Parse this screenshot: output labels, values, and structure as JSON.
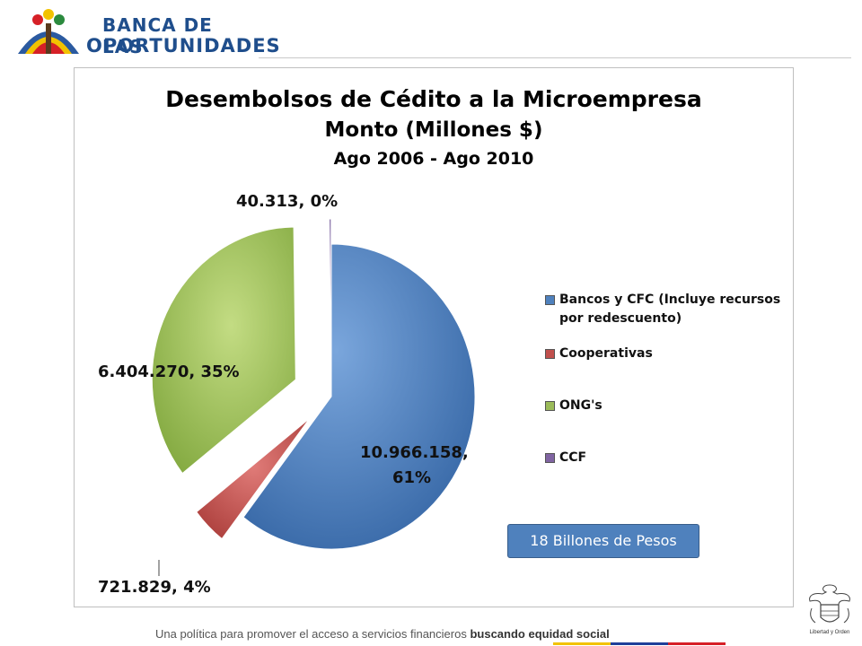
{
  "header": {
    "logo_line1": "BANCA DE LAS",
    "logo_line2": "OPORTUNIDADES"
  },
  "chart_data": {
    "type": "pie",
    "title": "Desembolsos de Cédito a la Microempresa",
    "subtitle": "Monto (Millones $)",
    "period": "Ago 2006 - Ago 2010",
    "series": [
      {
        "name": "Bancos y CFC (Incluye recursos por redescuento)",
        "value": 10966158,
        "percent": 61,
        "label": "10.966.158, 61%",
        "color": "#4f81bd"
      },
      {
        "name": "Cooperativas",
        "value": 721829,
        "percent": 4,
        "label": "721.829, 4%",
        "color": "#c0504d"
      },
      {
        "name": "ONG's",
        "value": 6404270,
        "percent": 35,
        "label": "6.404.270, 35%",
        "color": "#9bbb59"
      },
      {
        "name": "CCF",
        "value": 40313,
        "percent": 0,
        "label": "40.313, 0%",
        "color": "#8064a2"
      }
    ],
    "legend_position": "right",
    "data_labels": {
      "bancos_line1": "10.966.158,",
      "bancos_line2": "61%",
      "cooperativas": "721.829, 4%",
      "ong": "6.404.270, 35%",
      "ccf": "40.313, 0%"
    },
    "callout": "18 Billones de Pesos"
  },
  "footer": {
    "text": "Una política para promover el acceso a servicios financieros ",
    "emphasis": "buscando equidad social"
  },
  "seal": {
    "caption": "Libertad y Orden"
  }
}
